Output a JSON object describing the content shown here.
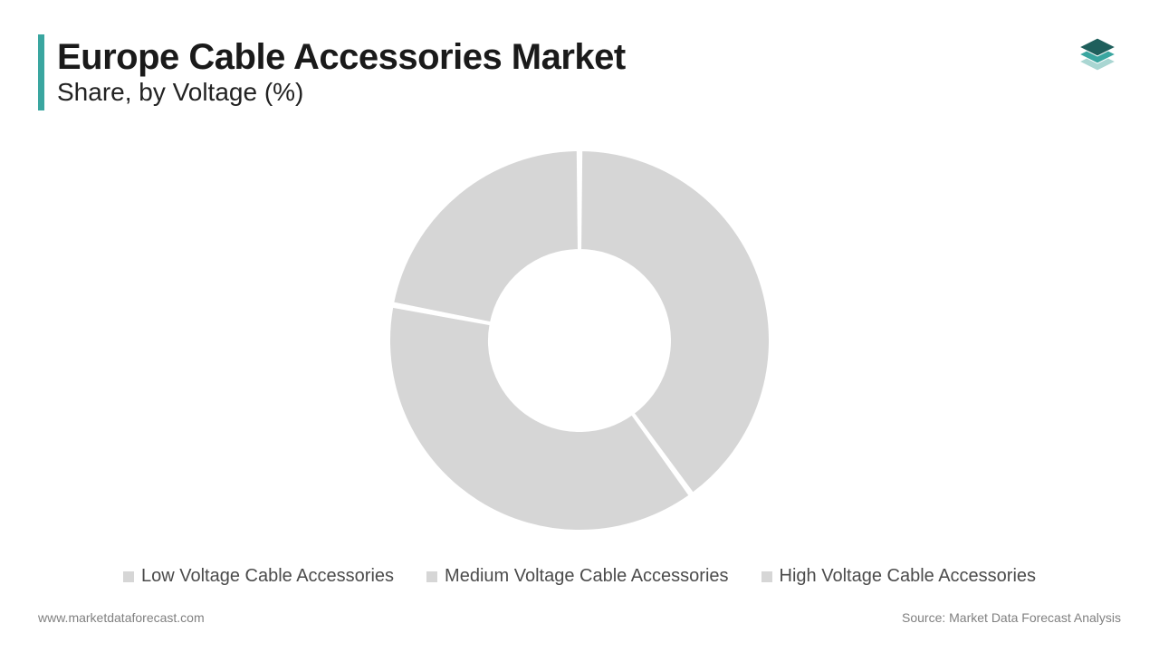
{
  "header": {
    "title": "Europe Cable Accessories Market",
    "subtitle": "Share, by Voltage (%)",
    "accent_color": "#3aa6a0"
  },
  "logo": {
    "layer_colors": [
      "#1f5f5c",
      "#3aa6a0",
      "#a9d6d2"
    ]
  },
  "chart": {
    "type": "donut",
    "outer_radius": 210,
    "inner_radius": 100,
    "center_fill": "#ffffff",
    "gap_deg": 1.2,
    "slices": [
      {
        "label": "Low Voltage Cable Accessories",
        "value": 40,
        "color": "#d6d6d6"
      },
      {
        "label": "Medium Voltage Cable Accessories",
        "value": 38,
        "color": "#d6d6d6"
      },
      {
        "label": "High Voltage Cable Accessories",
        "value": 22,
        "color": "#d6d6d6"
      }
    ],
    "stroke_color": "#ffffff",
    "stroke_width": 2
  },
  "legend": {
    "marker_prefix": "■",
    "text_color": "#4b4b4b",
    "font_size": 20
  },
  "footer": {
    "left": "www.marketdataforecast.com",
    "right": "Source: Market Data Forecast Analysis",
    "text_color": "#808080",
    "font_size": 14
  },
  "background_color": "#ffffff"
}
